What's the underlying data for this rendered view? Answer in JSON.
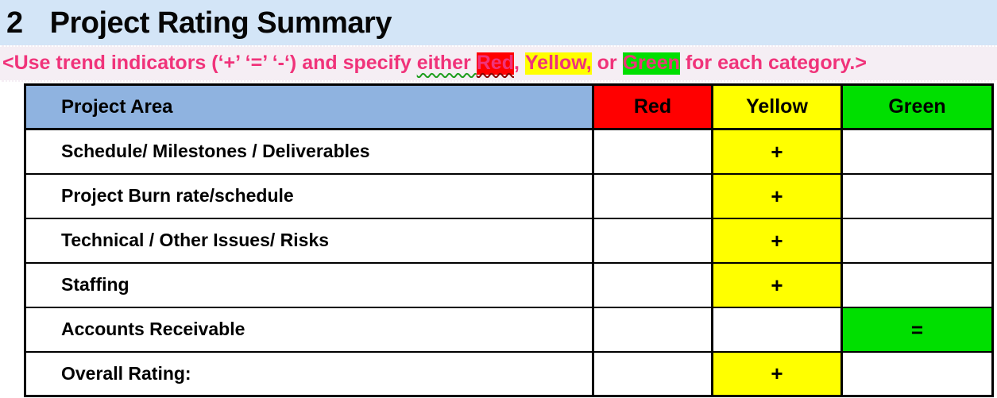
{
  "title": {
    "number": "2",
    "text": "Project Rating Summary"
  },
  "instruction": {
    "segments": [
      {
        "text": "<Use trend indicators (‘+’ ‘=’ ‘-‘) and specify ",
        "hl": null,
        "wavy": null
      },
      {
        "text": "either ",
        "hl": null,
        "wavy": "green"
      },
      {
        "text": "Red",
        "hl": "red",
        "wavy": "darkred"
      },
      {
        "text": ", ",
        "hl": null,
        "wavy": null
      },
      {
        "text": "Yellow,",
        "hl": "yellow",
        "wavy": null
      },
      {
        "text": " or ",
        "hl": null,
        "wavy": null
      },
      {
        "text": "Green",
        "hl": "green",
        "wavy": null
      },
      {
        "text": " for each category.>",
        "hl": null,
        "wavy": null
      }
    ]
  },
  "table": {
    "columns": [
      "Project Area",
      "Red",
      "Yellow",
      "Green"
    ],
    "rows": [
      {
        "label": "Schedule/ Milestones / Deliverables",
        "red": "",
        "yellow": "+",
        "green": ""
      },
      {
        "label": "Project Burn rate/schedule",
        "red": "",
        "yellow": "+",
        "green": ""
      },
      {
        "label": "Technical / Other Issues/ Risks",
        "red": "",
        "yellow": "+",
        "green": ""
      },
      {
        "label": "Staffing",
        "red": "",
        "yellow": "+",
        "green": ""
      },
      {
        "label": "Accounts Receivable",
        "red": "",
        "yellow": "",
        "green": "="
      },
      {
        "label": "Overall Rating:",
        "red": "",
        "yellow": "+",
        "green": ""
      }
    ]
  },
  "colors": {
    "red": "#ff0000",
    "yellow": "#ffff00",
    "green": "#00df00",
    "header_blue": "#8fb3e0",
    "title_background": "#d3e5f7",
    "instruction_background": "#f5eef4",
    "instruction_text": "#f0337a"
  }
}
